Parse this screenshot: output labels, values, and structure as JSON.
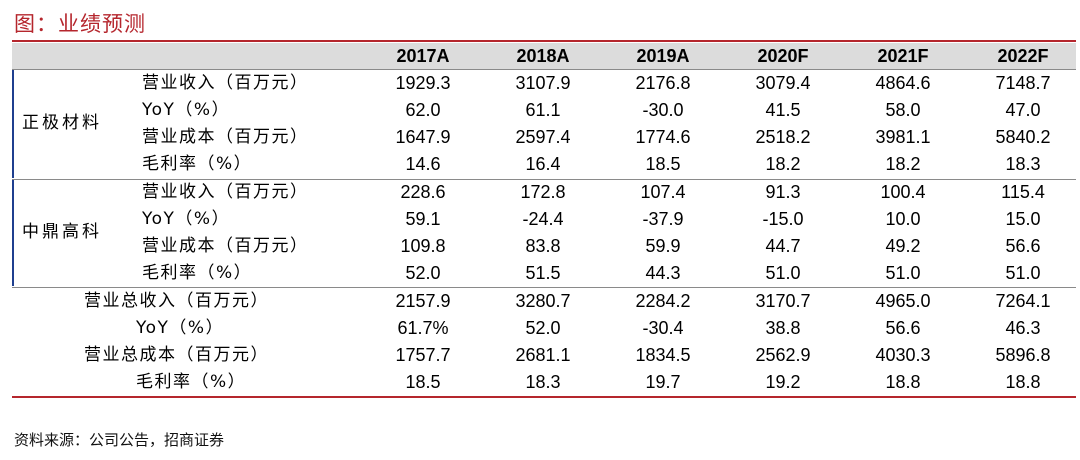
{
  "title": "图：业绩预测",
  "columns": [
    "2017A",
    "2018A",
    "2019A",
    "2020F",
    "2021F",
    "2022F"
  ],
  "groups": [
    {
      "label": "正极材料",
      "rows": [
        {
          "metric": "营业收入（百万元）",
          "values": [
            "1929.3",
            "3107.9",
            "2176.8",
            "3079.4",
            "4864.6",
            "7148.7"
          ]
        },
        {
          "metric": "YoY（%）",
          "values": [
            "62.0",
            "61.1",
            "-30.0",
            "41.5",
            "58.0",
            "47.0"
          ]
        },
        {
          "metric": "营业成本（百万元）",
          "values": [
            "1647.9",
            "2597.4",
            "1774.6",
            "2518.2",
            "3981.1",
            "5840.2"
          ]
        },
        {
          "metric": "毛利率（%）",
          "values": [
            "14.6",
            "16.4",
            "18.5",
            "18.2",
            "18.2",
            "18.3"
          ]
        }
      ]
    },
    {
      "label": "中鼎高科",
      "rows": [
        {
          "metric": "营业收入（百万元）",
          "values": [
            "228.6",
            "172.8",
            "107.4",
            "91.3",
            "100.4",
            "115.4"
          ]
        },
        {
          "metric": "YoY（%）",
          "values": [
            "59.1",
            "-24.4",
            "-37.9",
            "-15.0",
            "10.0",
            "15.0"
          ]
        },
        {
          "metric": "营业成本（百万元）",
          "values": [
            "109.8",
            "83.8",
            "59.9",
            "44.7",
            "49.2",
            "56.6"
          ]
        },
        {
          "metric": "毛利率（%）",
          "values": [
            "52.0",
            "51.5",
            "44.3",
            "51.0",
            "51.0",
            "51.0"
          ]
        }
      ]
    },
    {
      "label": "",
      "rows": [
        {
          "metric": "营业总收入（百万元）",
          "values": [
            "2157.9",
            "3280.7",
            "2284.2",
            "3170.7",
            "4965.0",
            "7264.1"
          ]
        },
        {
          "metric": "YoY（%）",
          "values": [
            "61.7%",
            "52.0",
            "-30.4",
            "38.8",
            "56.6",
            "46.3"
          ]
        },
        {
          "metric": "营业总成本（百万元）",
          "values": [
            "1757.7",
            "2681.1",
            "1834.5",
            "2562.9",
            "4030.3",
            "5896.8"
          ]
        },
        {
          "metric": "毛利率（%）",
          "values": [
            "18.5",
            "18.3",
            "19.7",
            "19.2",
            "18.8",
            "18.8"
          ]
        }
      ]
    }
  ],
  "source": "资料来源：公司公告，招商证券",
  "colors": {
    "accent": "#b5262d",
    "header_bg": "#dcdcdc",
    "group_bar": "#1f3f8f"
  }
}
